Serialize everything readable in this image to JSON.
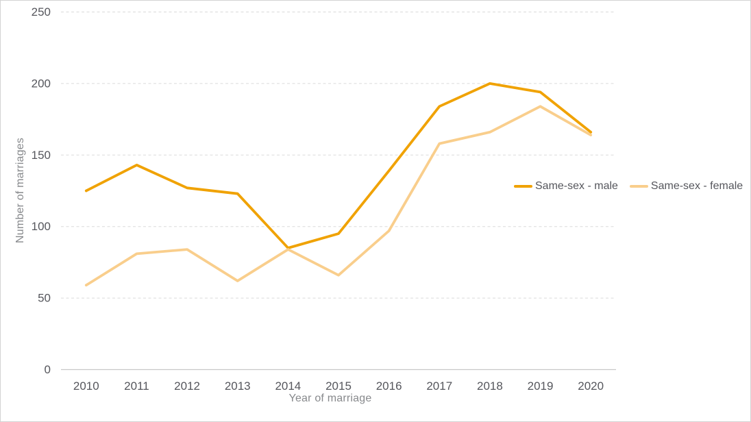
{
  "page": {
    "background": "#ffffff",
    "border_color": "#d2d2d2"
  },
  "colors": {
    "tick_label": "#55565c",
    "axis_title": "#87898c",
    "gridline": "#dadada",
    "axis_line": "#c8c8c8"
  },
  "chart_data": {
    "type": "line",
    "title": "",
    "categories": [
      "2010",
      "2011",
      "2012",
      "2013",
      "2014",
      "2015",
      "2016",
      "2017",
      "2018",
      "2019",
      "2020"
    ],
    "series": [
      {
        "name": "Same-sex - male",
        "color": "#F0A202",
        "values": [
          125,
          143,
          127,
          123,
          85,
          95,
          139,
          184,
          200,
          194,
          166
        ]
      },
      {
        "name": "Same-sex - female",
        "color": "#F9CE8C",
        "values": [
          59,
          81,
          84,
          62,
          84,
          66,
          97,
          158,
          166,
          184,
          164
        ]
      }
    ],
    "xlabel": "Year of marriage",
    "ylabel": "Number of marriages",
    "ylim": [
      0,
      250
    ],
    "yticks": [
      0,
      50,
      100,
      150,
      200,
      250
    ],
    "grid": "horizontal-dashed",
    "legend_position": "middle-right"
  }
}
